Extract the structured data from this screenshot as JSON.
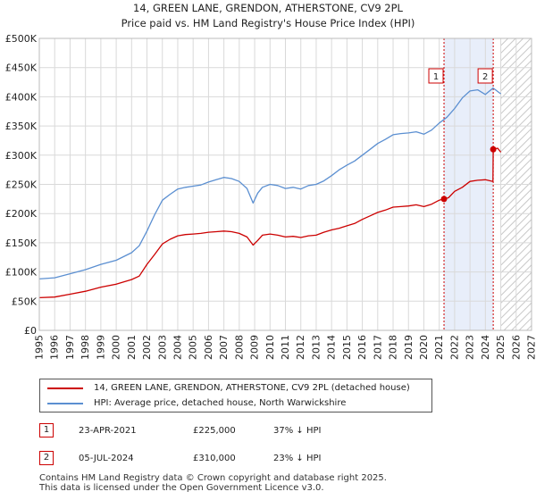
{
  "title": "14, GREEN LANE, GRENDON, ATHERSTONE, CV9 2PL",
  "subtitle": "Price paid vs. HM Land Registry's House Price Index (HPI)",
  "colors": {
    "property": "#cc0000",
    "hpi": "#5b8fd1",
    "shade": "#e8eefa",
    "grid": "#d9d9d9"
  },
  "chart_data": {
    "type": "line",
    "title": "14, GREEN LANE, GRENDON, ATHERSTONE, CV9 2PL",
    "subtitle": "Price paid vs. HM Land Registry's House Price Index (HPI)",
    "xlabel": "",
    "ylabel": "",
    "xlim": [
      1995,
      2027
    ],
    "ylim": [
      0,
      500000
    ],
    "y_ticks": [
      0,
      50000,
      100000,
      150000,
      200000,
      250000,
      300000,
      350000,
      400000,
      450000,
      500000
    ],
    "y_tick_labels": [
      "£0",
      "£50K",
      "£100K",
      "£150K",
      "£200K",
      "£250K",
      "£300K",
      "£350K",
      "£400K",
      "£450K",
      "£500K"
    ],
    "x_ticks": [
      1995,
      1996,
      1997,
      1998,
      1999,
      2000,
      2001,
      2002,
      2003,
      2004,
      2005,
      2006,
      2007,
      2008,
      2009,
      2010,
      2011,
      2012,
      2013,
      2014,
      2015,
      2016,
      2017,
      2018,
      2019,
      2020,
      2021,
      2022,
      2023,
      2024,
      2025,
      2026,
      2027
    ],
    "x_tick_labels": [
      "1995",
      "1996",
      "1997",
      "1998",
      "1999",
      "2000",
      "2001",
      "2002",
      "2003",
      "2004",
      "2005",
      "2006",
      "2007",
      "2008",
      "2009",
      "2010",
      "2011",
      "2012",
      "2013",
      "2014",
      "2015",
      "2016",
      "2017",
      "2018",
      "2019",
      "2020",
      "2021",
      "2022",
      "2023",
      "2024",
      "2025",
      "2026",
      "2027"
    ],
    "grid": true,
    "shaded_range": [
      2021.31,
      2024.51
    ],
    "forecast_hatch_from": 2025.0,
    "series": [
      {
        "name": "14, GREEN LANE, GRENDON, ATHERSTONE, CV9 2PL (detached house)",
        "color": "#cc0000",
        "x": [
          1995.0,
          1996.0,
          1997.0,
          1998.0,
          1999.0,
          2000.0,
          2001.0,
          2001.5,
          2002.0,
          2002.5,
          2003.0,
          2003.5,
          2004.0,
          2004.5,
          2005.0,
          2005.5,
          2006.0,
          2006.5,
          2007.0,
          2007.5,
          2008.0,
          2008.5,
          2008.9,
          2009.2,
          2009.5,
          2010.0,
          2010.5,
          2011.0,
          2011.5,
          2012.0,
          2012.5,
          2013.0,
          2013.5,
          2014.0,
          2014.5,
          2015.0,
          2015.5,
          2016.0,
          2016.5,
          2017.0,
          2017.5,
          2018.0,
          2018.5,
          2019.0,
          2019.5,
          2020.0,
          2020.5,
          2021.0,
          2021.31,
          2021.6,
          2022.0,
          2022.5,
          2023.0,
          2023.5,
          2024.0,
          2024.49,
          2024.51,
          2024.8,
          2025.0
        ],
        "values": [
          56000,
          57000,
          62000,
          67000,
          74000,
          79000,
          87000,
          93000,
          113000,
          130000,
          148000,
          156000,
          162000,
          164000,
          165000,
          166000,
          168000,
          169000,
          170000,
          169000,
          166000,
          160000,
          146000,
          154000,
          163000,
          165000,
          163000,
          160000,
          161000,
          159000,
          162000,
          163000,
          168000,
          172000,
          175000,
          179000,
          183000,
          190000,
          196000,
          202000,
          206000,
          211000,
          212000,
          213000,
          215000,
          212000,
          216000,
          223000,
          225000,
          227000,
          238000,
          245000,
          255000,
          257000,
          258000,
          255000,
          310000,
          312000,
          305000
        ],
        "markers": [
          {
            "x": 2021.31,
            "y": 225000,
            "label": "1"
          },
          {
            "x": 2024.51,
            "y": 310000,
            "label": "2"
          }
        ]
      },
      {
        "name": "HPI: Average price, detached house, North Warwickshire",
        "color": "#5b8fd1",
        "x": [
          1995.0,
          1996.0,
          1997.0,
          1998.0,
          1999.0,
          2000.0,
          2001.0,
          2001.5,
          2002.0,
          2002.5,
          2003.0,
          2003.5,
          2004.0,
          2004.5,
          2005.0,
          2005.5,
          2006.0,
          2006.5,
          2007.0,
          2007.5,
          2008.0,
          2008.5,
          2008.9,
          2009.2,
          2009.5,
          2010.0,
          2010.5,
          2011.0,
          2011.5,
          2012.0,
          2012.5,
          2013.0,
          2013.5,
          2014.0,
          2014.5,
          2015.0,
          2015.5,
          2016.0,
          2016.5,
          2017.0,
          2017.5,
          2018.0,
          2018.5,
          2019.0,
          2019.5,
          2020.0,
          2020.5,
          2021.0,
          2021.5,
          2022.0,
          2022.5,
          2023.0,
          2023.5,
          2024.0,
          2024.5,
          2025.0
        ],
        "values": [
          88000,
          90000,
          97000,
          104000,
          113000,
          120000,
          133000,
          145000,
          170000,
          198000,
          223000,
          233000,
          242000,
          245000,
          247000,
          249000,
          254000,
          258000,
          262000,
          260000,
          255000,
          243000,
          218000,
          235000,
          245000,
          250000,
          248000,
          243000,
          245000,
          242000,
          248000,
          250000,
          256000,
          265000,
          275000,
          283000,
          290000,
          300000,
          310000,
          320000,
          327000,
          335000,
          337000,
          338000,
          340000,
          336000,
          343000,
          355000,
          365000,
          380000,
          398000,
          410000,
          412000,
          404000,
          415000,
          405000
        ]
      }
    ]
  },
  "legend": {
    "property_label": "14, GREEN LANE, GRENDON, ATHERSTONE, CV9 2PL (detached house)",
    "hpi_label": "HPI: Average price, detached house, North Warwickshire"
  },
  "transactions": [
    {
      "num": "1",
      "date": "23-APR-2021",
      "price": "£225,000",
      "hpi_diff": "37% ↓ HPI"
    },
    {
      "num": "2",
      "date": "05-JUL-2024",
      "price": "£310,000",
      "hpi_diff": "23% ↓ HPI"
    }
  ],
  "footer": {
    "line1": "Contains HM Land Registry data © Crown copyright and database right 2025.",
    "line2": "This data is licensed under the Open Government Licence v3.0."
  }
}
